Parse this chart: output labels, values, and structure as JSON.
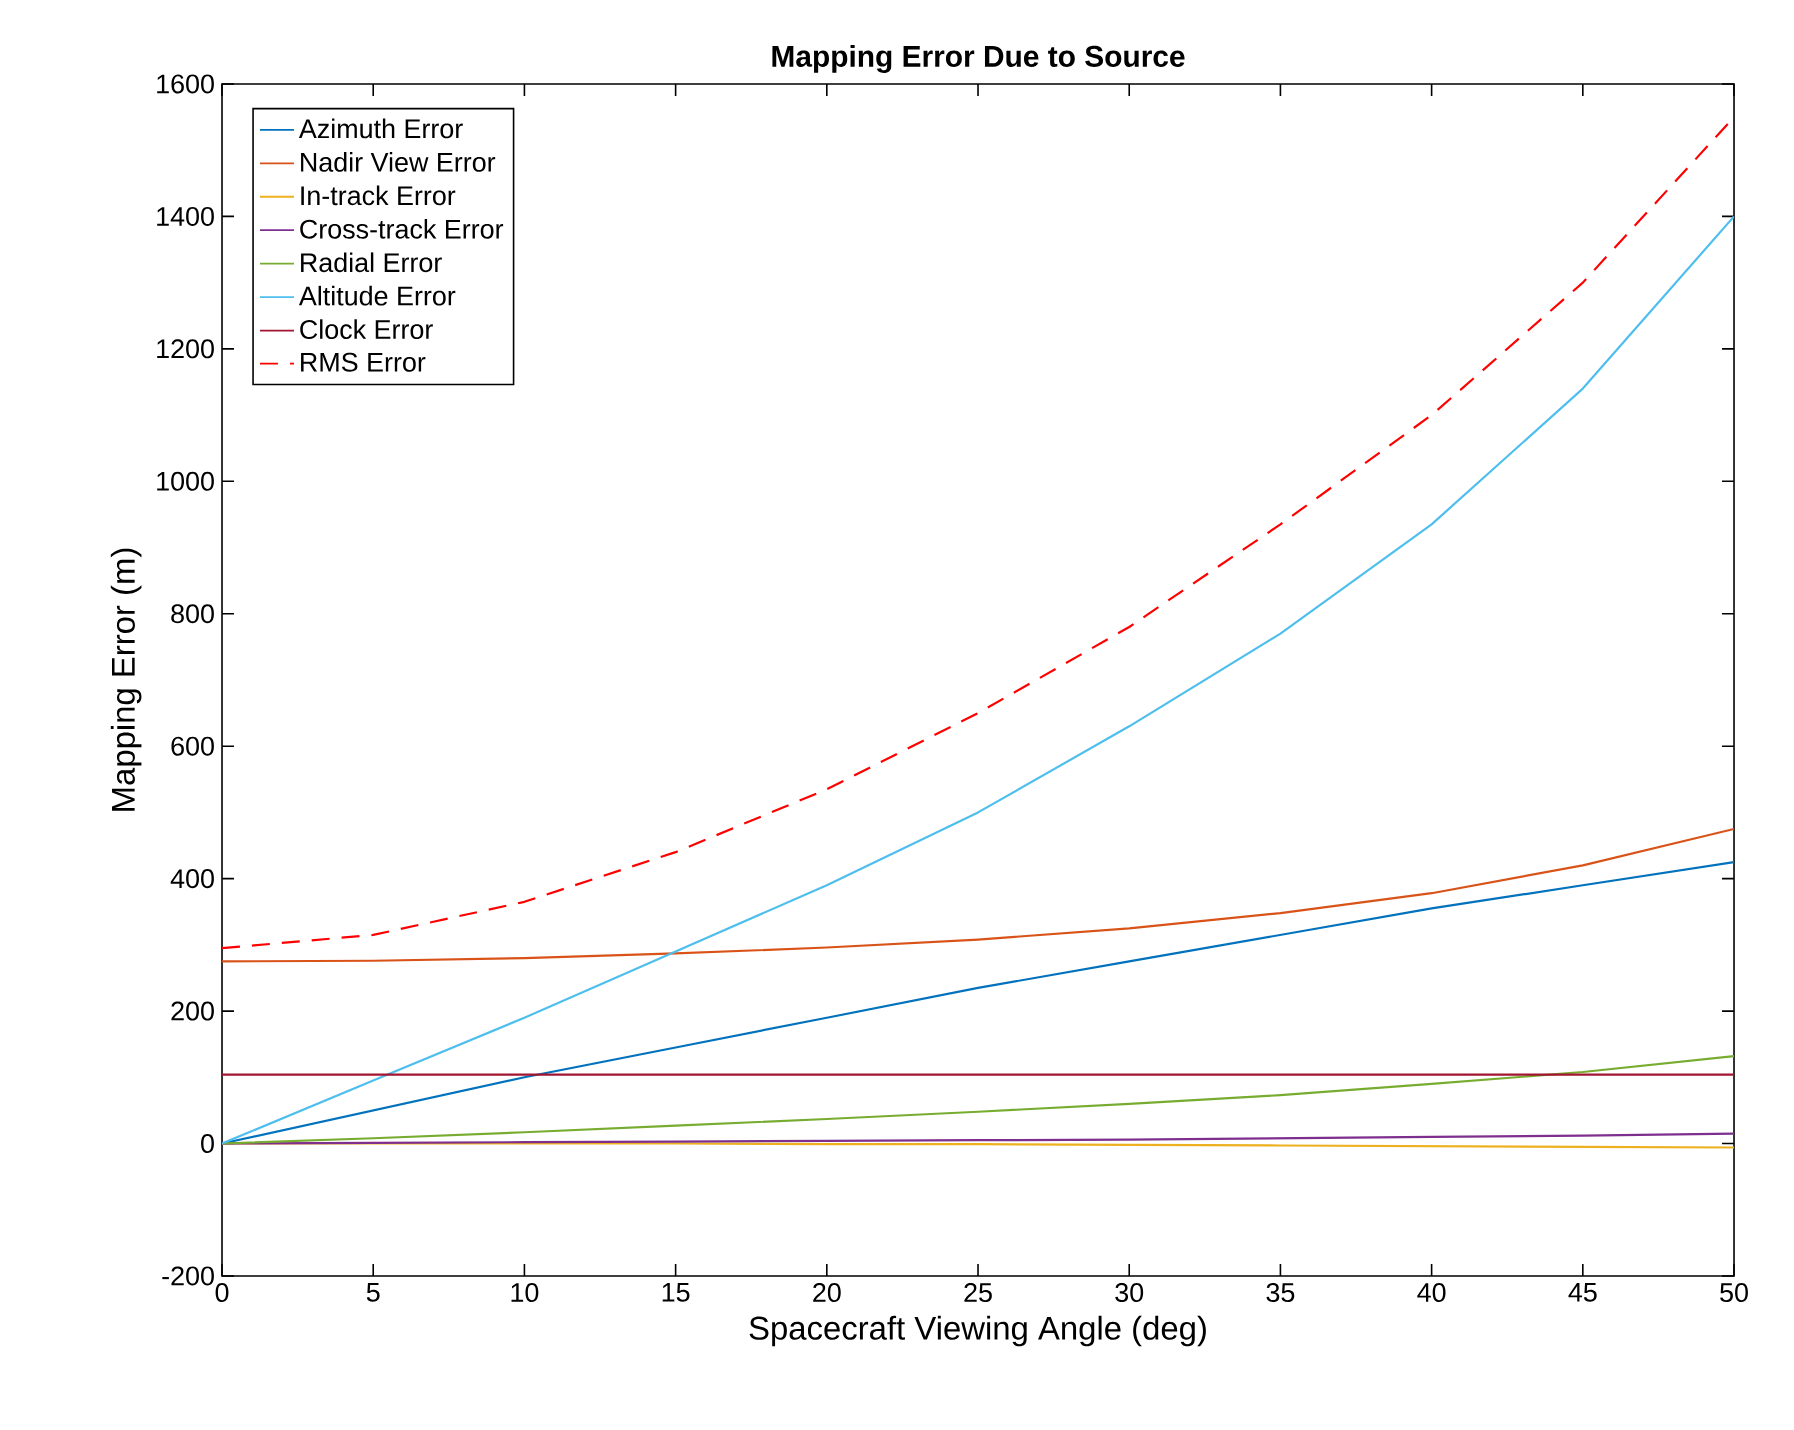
{
  "chart_data": {
    "type": "line",
    "title": "Mapping Error Due to Source",
    "xlabel": "Spacecraft Viewing Angle (deg)",
    "ylabel": "Mapping Error (m)",
    "x": [
      0,
      5,
      10,
      15,
      20,
      25,
      30,
      35,
      40,
      45,
      50
    ],
    "series": [
      {
        "name": "Azimuth Error",
        "color": "#0072bd",
        "values": [
          0,
          50,
          100,
          145,
          190,
          235,
          275,
          315,
          355,
          390,
          425
        ]
      },
      {
        "name": "Nadir View Error",
        "color": "#d95319",
        "values": [
          275,
          276,
          280,
          287,
          296,
          308,
          325,
          348,
          378,
          420,
          475
        ]
      },
      {
        "name": "In-track Error",
        "color": "#edb120",
        "values": [
          0,
          0,
          0,
          0,
          -1,
          -1,
          -2,
          -3,
          -4,
          -5,
          -6
        ]
      },
      {
        "name": "Cross-track Error",
        "color": "#7e2f8e",
        "values": [
          0,
          1,
          2,
          3,
          4,
          5,
          6,
          8,
          10,
          12,
          15
        ]
      },
      {
        "name": "Radial Error",
        "color": "#77ac30",
        "values": [
          0,
          8,
          17,
          27,
          37,
          48,
          60,
          73,
          90,
          108,
          132
        ]
      },
      {
        "name": "Altitude Error",
        "color": "#4dbeee",
        "values": [
          0,
          95,
          190,
          290,
          390,
          500,
          630,
          770,
          935,
          1140,
          1400
        ]
      },
      {
        "name": "Clock Error",
        "color": "#a2142f",
        "values": [
          104,
          104,
          104,
          104,
          104,
          104,
          104,
          104,
          104,
          104,
          104
        ]
      },
      {
        "name": "RMS Error",
        "color": "#ff0000",
        "line_style": "dashed",
        "values": [
          295,
          315,
          365,
          440,
          535,
          650,
          780,
          935,
          1100,
          1300,
          1550
        ]
      }
    ],
    "xlim": [
      0,
      50
    ],
    "ylim": [
      -200,
      1600
    ],
    "xticks": [
      0,
      5,
      10,
      15,
      20,
      25,
      30,
      35,
      40,
      45,
      50
    ],
    "yticks": [
      -200,
      0,
      200,
      400,
      600,
      800,
      1000,
      1200,
      1400,
      1600
    ],
    "grid": false,
    "legend": "top left",
    "marker": "none",
    "line_style": "solid"
  }
}
